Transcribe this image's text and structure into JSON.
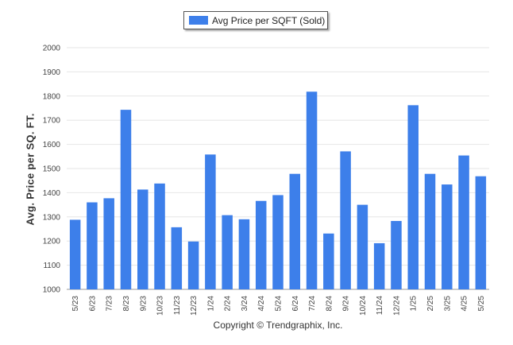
{
  "chart_data": {
    "type": "bar",
    "categories": [
      "5/23",
      "6/23",
      "7/23",
      "8/23",
      "9/23",
      "10/23",
      "11/23",
      "12/23",
      "1/24",
      "2/24",
      "3/24",
      "4/24",
      "5/24",
      "6/24",
      "7/24",
      "8/24",
      "9/24",
      "10/24",
      "11/24",
      "12/24",
      "1/25",
      "2/25",
      "3/25",
      "4/25",
      "5/25"
    ],
    "series": [
      {
        "name": "Avg Price per SQFT (Sold)",
        "values": [
          1288,
          1360,
          1377,
          1743,
          1413,
          1438,
          1257,
          1198,
          1558,
          1307,
          1290,
          1366,
          1390,
          1478,
          1818,
          1231,
          1571,
          1350,
          1191,
          1283,
          1762,
          1478,
          1434,
          1554,
          1468
        ]
      }
    ],
    "ylabel": "Avg. Price per SQ. FT.",
    "xlabel": "",
    "ylim": [
      1000,
      2000
    ],
    "yticks": [
      1000,
      1100,
      1200,
      1300,
      1400,
      1500,
      1600,
      1700,
      1800,
      1900,
      2000
    ],
    "grid": true,
    "legend_position": "top-center",
    "colors": {
      "bar": "#3d7fea",
      "grid": "#e6e6e6",
      "axis": "#999999"
    },
    "copyright": "Copyright © Trendgraphix, Inc."
  }
}
